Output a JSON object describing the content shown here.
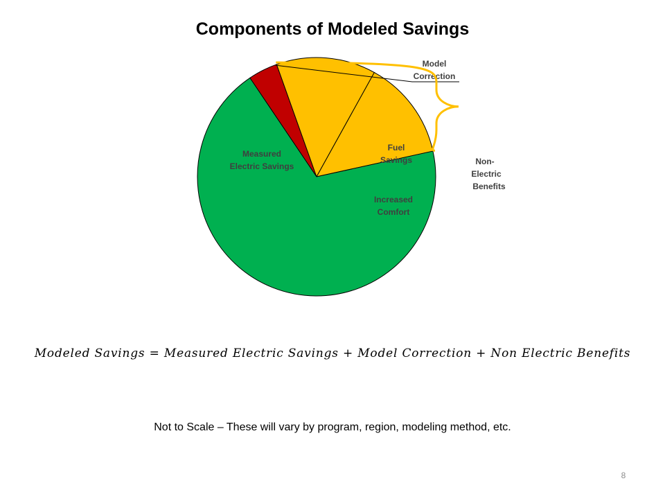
{
  "slide": {
    "title": "Components of Modeled Savings",
    "equation": "Modeled Savings = Measured Electric Savings + Model Correction + Non Electric Benefits",
    "note": "Not to Scale – These will vary by program, region, modeling method, etc.",
    "page_number": "8"
  },
  "chart_data": {
    "type": "pie",
    "title": "Components of Modeled Savings",
    "slices": [
      {
        "label": "Model Correction",
        "value": 4,
        "color": "#c00000"
      },
      {
        "label": "Fuel Savings",
        "value": 13.5,
        "color": "#ffc000"
      },
      {
        "label": "Increased Comfort",
        "value": 13.5,
        "color": "#ffc000"
      },
      {
        "label": "Measured Electric Savings",
        "value": 69,
        "color": "#00b050"
      }
    ],
    "brace_label": "Non- Electric Benefits",
    "brace_color": "#ffc000",
    "brace_groups": [
      "Fuel Savings",
      "Increased Comfort"
    ]
  }
}
